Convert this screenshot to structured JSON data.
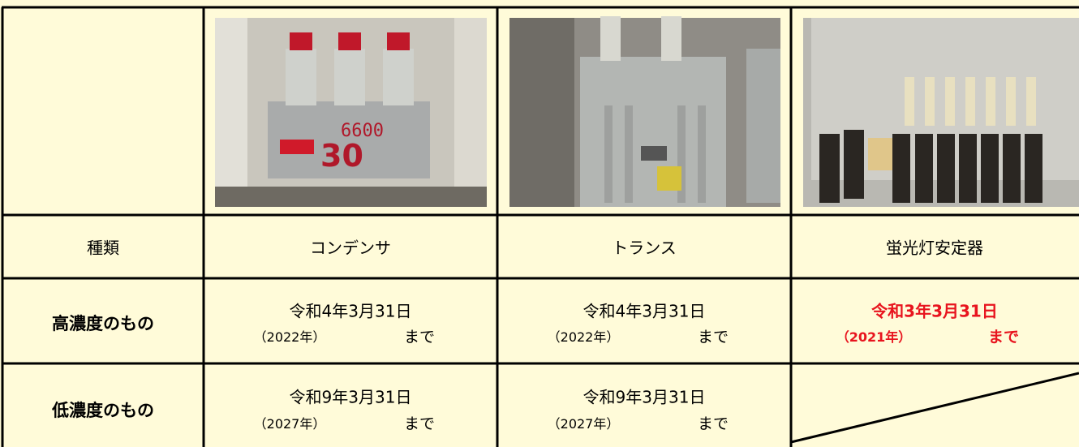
{
  "table": {
    "header": [
      "種類",
      "コンデンサ",
      "トランス",
      "蛍光灯安定器"
    ],
    "rows": [
      {
        "label": "高濃度のもの",
        "cells": [
          {
            "date": "令和4年3月31日",
            "year": "（2022年）",
            "until": "まで",
            "color": "#000000"
          },
          {
            "date": "令和4年3月31日",
            "year": "（2022年）",
            "until": "まで",
            "color": "#000000"
          },
          {
            "date": "令和3年3月31日",
            "year": "（2021年）",
            "until": "まで",
            "color": "#e8141e"
          }
        ]
      },
      {
        "label": "低濃度のもの",
        "cells": [
          {
            "date": "令和9年3月31日",
            "year": "（2027年）",
            "until": "まで",
            "color": "#000000"
          },
          {
            "date": "令和9年3月31日",
            "year": "（2027年）",
            "until": "まで",
            "color": "#000000"
          }
        ]
      }
    ]
  }
}
